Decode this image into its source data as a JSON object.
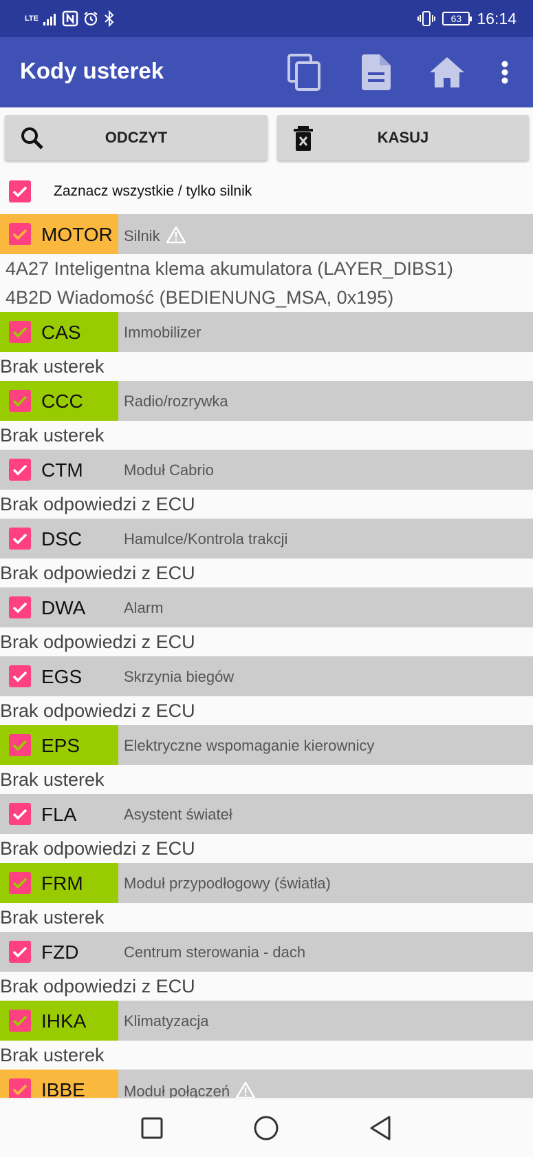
{
  "status_bar": {
    "network": "LTE",
    "battery": "63",
    "time": "16:14"
  },
  "app_bar": {
    "title": "Kody usterek",
    "icons": [
      "copy-icon",
      "document-icon",
      "home-icon",
      "overflow-menu-icon"
    ]
  },
  "actions": {
    "read_label": "ODCZYT",
    "clear_label": "KASUJ"
  },
  "select_all": {
    "label": "Zaznacz wszystkie / tylko silnik",
    "checked": true
  },
  "colors": {
    "primary": "#3f51b5",
    "status_bar": "#2a3a9a",
    "accent_checkbox": "#ff4081",
    "fault_tag": "#fbb83f",
    "ok_tag": "#99cc00",
    "row_bg": "#cccccc"
  },
  "ecus": [
    {
      "code": "MOTOR",
      "desc": "Silnik",
      "state": "fault",
      "warning": true,
      "checked": true,
      "lines": [
        "4A27 Inteligentna klema akumulatora (LAYER_DIBS1)",
        "4B2D Wiadomość (BEDIENUNG_MSA, 0x195)"
      ]
    },
    {
      "code": "CAS",
      "desc": "Immobilizer",
      "state": "ok",
      "checked": true,
      "lines": [
        "Brak usterek"
      ]
    },
    {
      "code": "CCC",
      "desc": "Radio/rozrywka",
      "state": "ok",
      "checked": true,
      "lines": [
        "Brak usterek"
      ]
    },
    {
      "code": "CTM",
      "desc": "Moduł Cabrio",
      "state": "none",
      "checked": true,
      "lines": [
        "Brak odpowiedzi z ECU"
      ]
    },
    {
      "code": "DSC",
      "desc": "Hamulce/Kontrola trakcji",
      "state": "none",
      "checked": true,
      "lines": [
        "Brak odpowiedzi z ECU"
      ]
    },
    {
      "code": "DWA",
      "desc": "Alarm",
      "state": "none",
      "checked": true,
      "lines": [
        "Brak odpowiedzi z ECU"
      ]
    },
    {
      "code": "EGS",
      "desc": "Skrzynia biegów",
      "state": "none",
      "checked": true,
      "lines": [
        "Brak odpowiedzi z ECU"
      ]
    },
    {
      "code": "EPS",
      "desc": "Elektryczne wspomaganie kierownicy",
      "state": "ok",
      "checked": true,
      "lines": [
        "Brak usterek"
      ]
    },
    {
      "code": "FLA",
      "desc": "Asystent świateł",
      "state": "none",
      "checked": true,
      "lines": [
        "Brak odpowiedzi z ECU"
      ]
    },
    {
      "code": "FRM",
      "desc": "Moduł przypodłogowy (światła)",
      "state": "ok",
      "checked": true,
      "lines": [
        "Brak usterek"
      ]
    },
    {
      "code": "FZD",
      "desc": "Centrum sterowania - dach",
      "state": "none",
      "checked": true,
      "lines": [
        "Brak odpowiedzi z ECU"
      ]
    },
    {
      "code": "IHKA",
      "desc": "Klimatyzacja",
      "state": "ok",
      "checked": true,
      "lines": [
        "Brak usterek"
      ]
    },
    {
      "code": "IBBE",
      "desc": "Moduł połączeń",
      "state": "fault",
      "warning": true,
      "checked": true,
      "lines": []
    }
  ],
  "nav_bar": {
    "icons": [
      "recents-icon",
      "home-circle-icon",
      "back-icon"
    ]
  }
}
